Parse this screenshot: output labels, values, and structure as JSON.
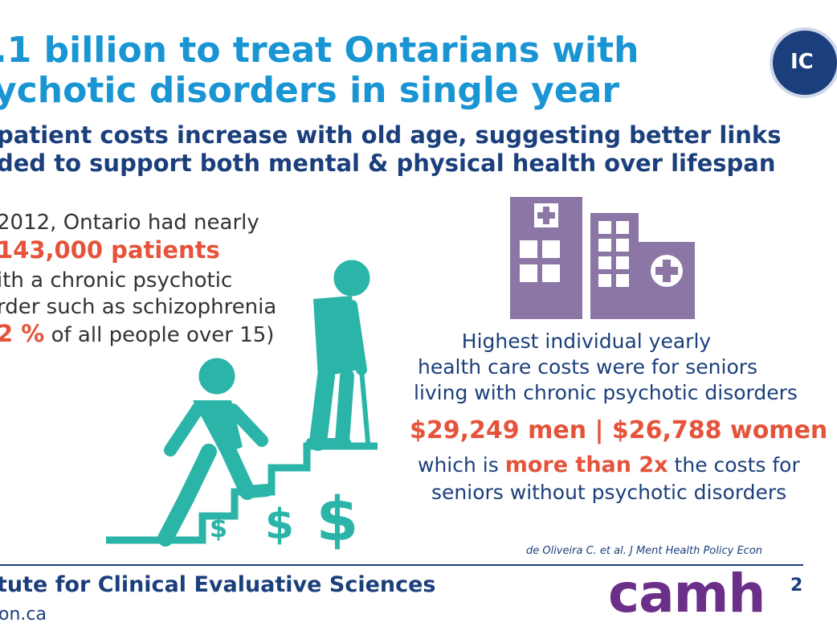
{
  "header": {
    "title_line1": ".1 billion to treat Ontarians with",
    "title_line2": "ychotic disorders in single year",
    "subtitle_line1": "patient costs increase with old age, suggesting better links",
    "subtitle_line2": "ded to support both mental & physical health over lifespan",
    "logo_text": "IC"
  },
  "left_stat": {
    "line1": "2012, Ontario had nearly",
    "line2": "143,000 patients",
    "line3": "ith a chronic psychotic",
    "line4": "rder such as schizophrenia",
    "line5_pct": "2 %",
    "line5_rest": "of all people over 15)"
  },
  "right_stat": {
    "line1": "Highest individual yearly",
    "line2": "health care costs were for seniors",
    "line3": "living with chronic psychotic disorders",
    "costs": "$29,249 men | $26,788 women",
    "line5_pre": "which is",
    "line5_emph": "more than 2x",
    "line5_post": "the costs for",
    "line6": "seniors without psychotic disorders"
  },
  "stairs": {
    "dollar_small": "$",
    "dollar_mid": "$",
    "dollar_big": "$"
  },
  "citation": "de Oliveira C. et al. J Ment Health Policy Econ",
  "footer": {
    "org": "tute for Clinical Evaluative Sciences",
    "url": "on.ca",
    "brand": "camh",
    "edge_char": "2"
  },
  "colors": {
    "title_blue": "#1a95d3",
    "navy": "#1b3f7c",
    "accent_red": "#e5533b",
    "teal": "#2bb5a8",
    "building_purple": "#8b76a6",
    "camh_purple": "#6b2f8a"
  }
}
